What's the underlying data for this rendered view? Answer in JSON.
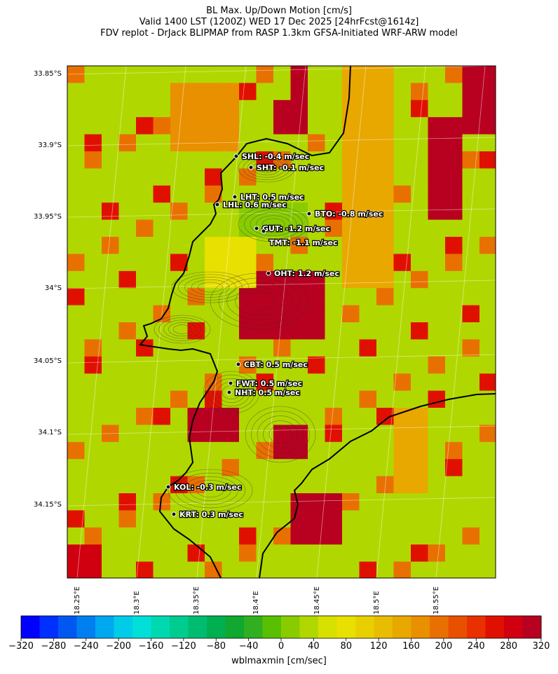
{
  "title": {
    "line1": "BL Max. Up/Down Motion [cm/s]",
    "line2": "Valid 1400 LST (1200Z) WED 17 Dec 2025 [24hrFcst@1614z]",
    "line3": "FDV replot - DrJack BLIPMAP from RASP 1.3km GFSA-Initiated WRF-ARW model"
  },
  "axes": {
    "lat_ticks": [
      "33.85°S",
      "33.9°S",
      "33.95°S",
      "34°S",
      "34.05°S",
      "34.1°S",
      "34.15°S"
    ],
    "lon_ticks": [
      "18.25°E",
      "18.3°E",
      "18.35°E",
      "18.4°E",
      "18.45°E",
      "18.5°E",
      "18.55°E"
    ]
  },
  "stations": [
    {
      "label": "SHL: -0.4 m/sec",
      "value": -0.4
    },
    {
      "label": "SHT: -0.1 m/sec",
      "value": -0.1
    },
    {
      "label": "LHT: 0.5 m/sec",
      "value": 0.5
    },
    {
      "label": "LHL: 0.6 m/sec",
      "value": 0.6
    },
    {
      "label": "BTO: -0.8 m/sec",
      "value": -0.8
    },
    {
      "label": "GUT: -1.2 m/sec",
      "value": -1.2
    },
    {
      "label": "TMT: -1.1 m/sec",
      "value": -1.1
    },
    {
      "label": "OHT: 1.2 m/sec",
      "value": 1.2
    },
    {
      "label": "CBT: 0.5 m/sec",
      "value": 0.5
    },
    {
      "label": "FWT: 0.5 m/sec",
      "value": 0.5
    },
    {
      "label": "NHT: 0.5 m/sec",
      "value": 0.5
    },
    {
      "label": "KOL: -0.3 m/sec",
      "value": -0.3
    },
    {
      "label": "KRT: 0.3 m/sec",
      "value": 0.3
    }
  ],
  "colorbar": {
    "label": "wblmaxmin [cm/sec]",
    "ticks": [
      "−320",
      "−280",
      "−240",
      "−200",
      "−160",
      "−120",
      "−80",
      "−40",
      "0",
      "40",
      "80",
      "120",
      "160",
      "200",
      "240",
      "280",
      "320"
    ],
    "range": [
      -320,
      320
    ],
    "colors": [
      "#0000ff",
      "#0030ff",
      "#0058f0",
      "#0080f0",
      "#00a8f0",
      "#00cce8",
      "#00e0d8",
      "#00d8b0",
      "#00cc90",
      "#00bc70",
      "#00b050",
      "#10a830",
      "#30b020",
      "#58c000",
      "#88cc00",
      "#b0d800",
      "#d8e000",
      "#e8e000",
      "#e8d000",
      "#e8bc00",
      "#e8a800",
      "#e89000",
      "#e87000",
      "#e85000",
      "#e83000",
      "#e01000",
      "#d00010",
      "#b80020"
    ]
  },
  "colors": {
    "coast": "#000000",
    "marker": "#111111"
  }
}
